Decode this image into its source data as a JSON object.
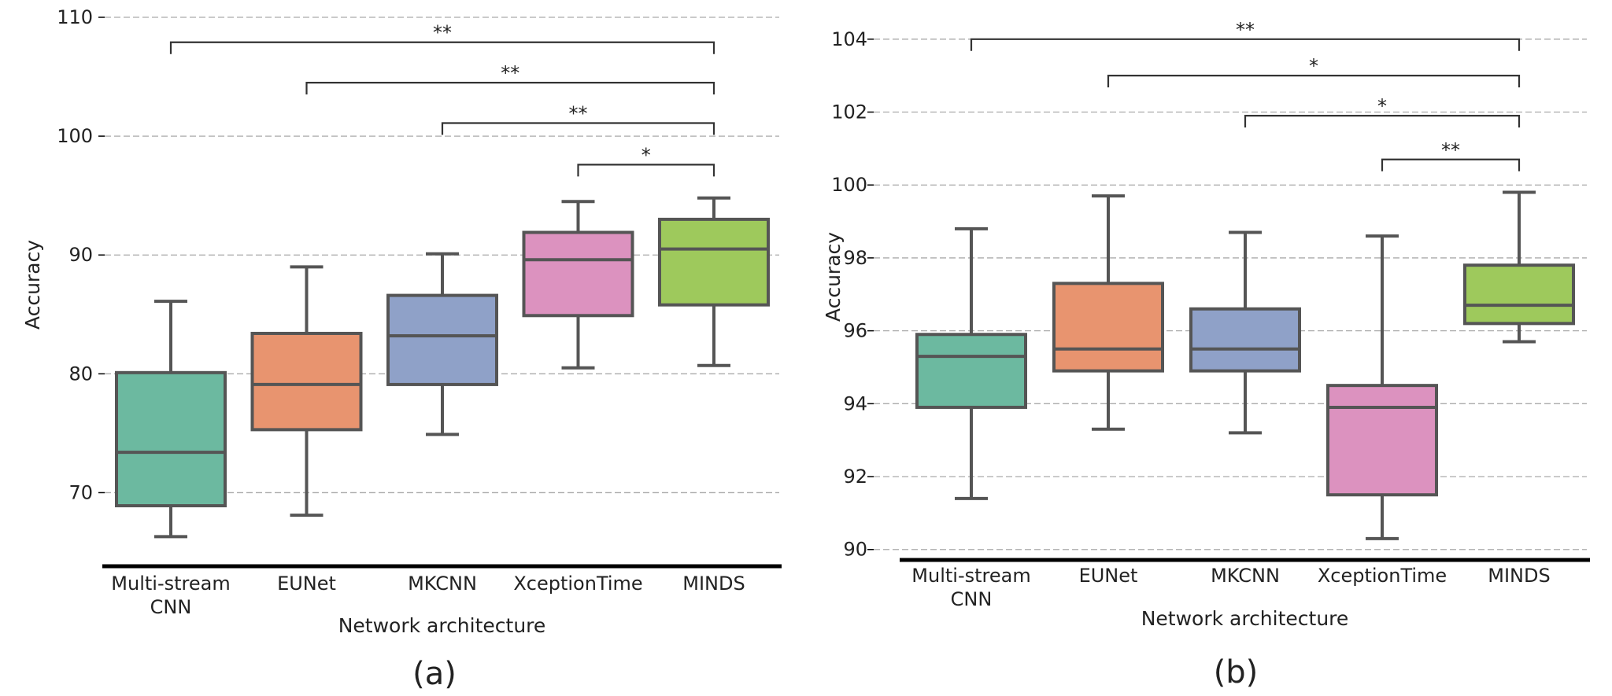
{
  "chart_data": [
    {
      "type": "box",
      "panel_label": "(a)",
      "xlabel": "Network architecture",
      "ylabel": "Accuracy",
      "ylim": [
        65,
        110
      ],
      "yticks": [
        "70",
        "80",
        "90",
        "100",
        "110"
      ],
      "grid": "horizontal dashed",
      "categories": [
        [
          "Multi-stream",
          "CNN"
        ],
        [
          "EUNet"
        ],
        [
          "MKCNN"
        ],
        [
          "XceptionTime"
        ],
        [
          "MINDS"
        ]
      ],
      "boxes": [
        {
          "whisker_low": 66.3,
          "q1": 68.9,
          "median": 73.4,
          "q3": 80.1,
          "whisker_high": 86.1
        },
        {
          "whisker_low": 68.1,
          "q1": 75.3,
          "median": 79.1,
          "q3": 83.4,
          "whisker_high": 89.0
        },
        {
          "whisker_low": 74.9,
          "q1": 79.1,
          "median": 83.2,
          "q3": 86.6,
          "whisker_high": 90.1
        },
        {
          "whisker_low": 80.5,
          "q1": 84.9,
          "median": 89.6,
          "q3": 91.9,
          "whisker_high": 94.5
        },
        {
          "whisker_low": 80.7,
          "q1": 85.8,
          "median": 90.5,
          "q3": 93.0,
          "whisker_high": 94.8
        }
      ],
      "significance": [
        {
          "from": 0,
          "to": 4,
          "label": "**",
          "y": 107.9
        },
        {
          "from": 1,
          "to": 4,
          "label": "**",
          "y": 104.5
        },
        {
          "from": 2,
          "to": 4,
          "label": "**",
          "y": 101.1
        },
        {
          "from": 3,
          "to": 4,
          "label": "*",
          "y": 97.6
        }
      ]
    },
    {
      "type": "box",
      "panel_label": "(b)",
      "xlabel": "Network architecture",
      "ylabel": "Accuracy",
      "ylim": [
        89.8,
        104.6
      ],
      "yticks": [
        "90",
        "92",
        "94",
        "96",
        "98",
        "100",
        "102",
        "104"
      ],
      "grid": "horizontal dashed",
      "categories": [
        [
          "Multi-stream",
          "CNN"
        ],
        [
          "EUNet"
        ],
        [
          "MKCNN"
        ],
        [
          "XceptionTime"
        ],
        [
          "MINDS"
        ]
      ],
      "boxes": [
        {
          "whisker_low": 91.4,
          "q1": 93.9,
          "median": 95.3,
          "q3": 95.9,
          "whisker_high": 98.8
        },
        {
          "whisker_low": 93.3,
          "q1": 94.9,
          "median": 95.5,
          "q3": 97.3,
          "whisker_high": 99.7
        },
        {
          "whisker_low": 93.2,
          "q1": 94.9,
          "median": 95.5,
          "q3": 96.6,
          "whisker_high": 98.7
        },
        {
          "whisker_low": 90.3,
          "q1": 91.5,
          "median": 93.9,
          "q3": 94.5,
          "whisker_high": 98.6
        },
        {
          "whisker_low": 95.7,
          "q1": 96.2,
          "median": 96.7,
          "q3": 97.8,
          "whisker_high": 99.8
        }
      ],
      "significance": [
        {
          "from": 0,
          "to": 4,
          "label": "**",
          "y": 104.0
        },
        {
          "from": 1,
          "to": 4,
          "label": "*",
          "y": 103.0
        },
        {
          "from": 2,
          "to": 4,
          "label": "*",
          "y": 101.9
        },
        {
          "from": 3,
          "to": 4,
          "label": "**",
          "y": 100.7
        }
      ]
    }
  ],
  "colors": {
    "boxes": [
      "#6cb9a0",
      "#e8946f",
      "#8fa1c8",
      "#dc92bf",
      "#9ec95c"
    ],
    "edge": "#555555",
    "grid": "#aaaaaa",
    "axis": "#000000",
    "text": "#222222"
  }
}
